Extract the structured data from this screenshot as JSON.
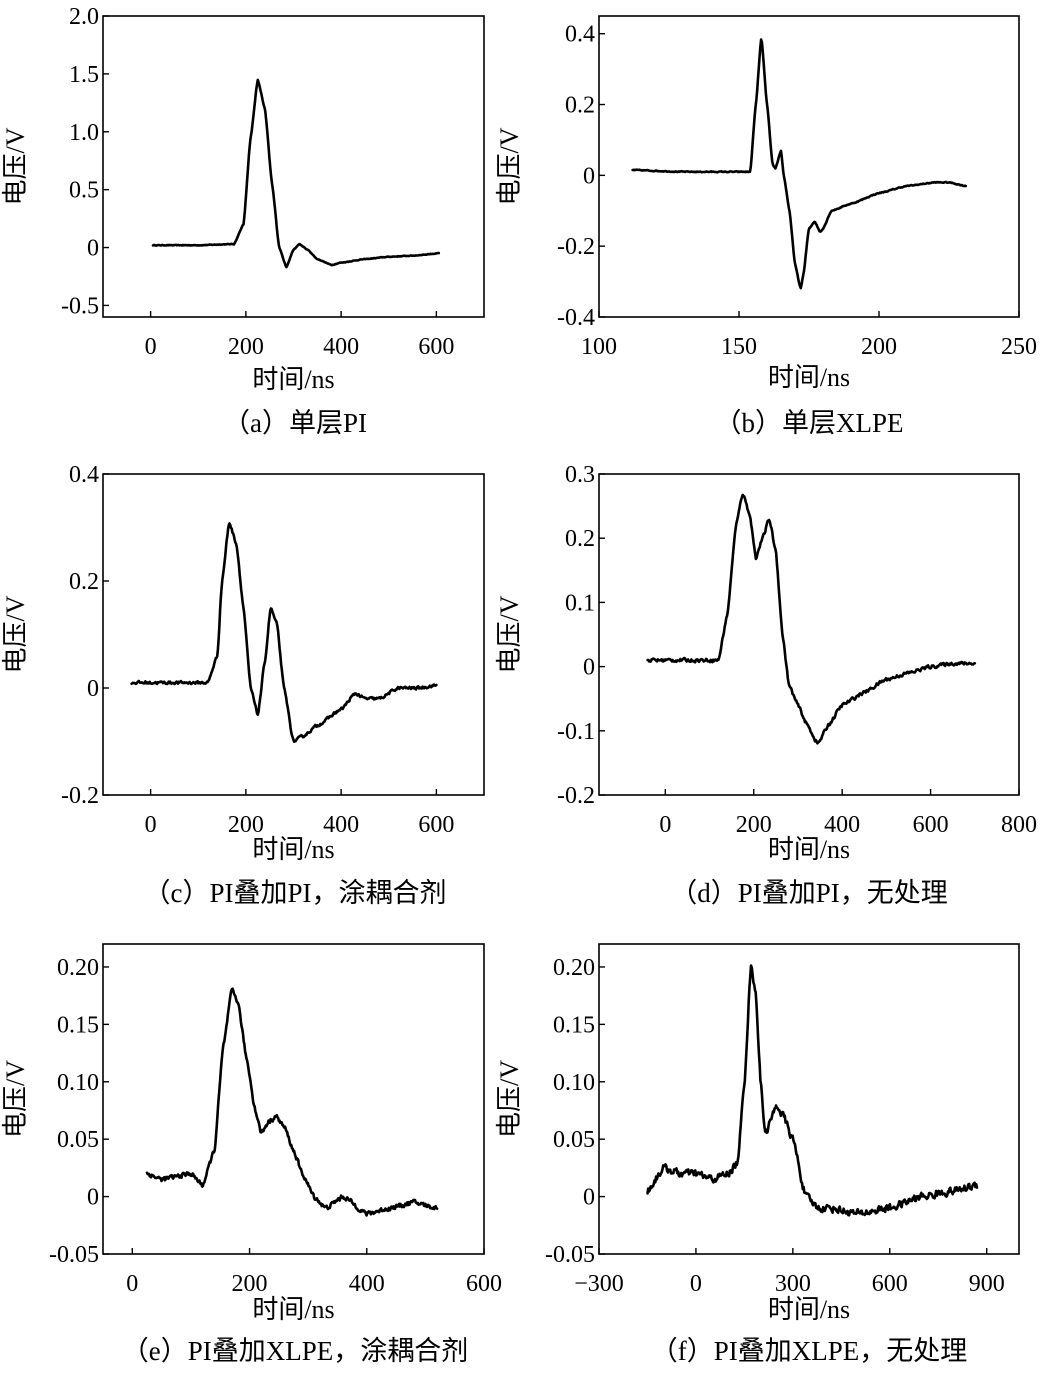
{
  "chart_data": [
    {
      "type": "line",
      "caption": "（a）单层PI",
      "xlabel": "时间/ns",
      "ylabel": "电压/V",
      "xlim": [
        -100,
        700
      ],
      "ylim": [
        -0.6,
        2.0
      ],
      "xticks": [
        0,
        200,
        400,
        600
      ],
      "xtick_labels": [
        "0",
        "200",
        "400",
        "600"
      ],
      "yticks": [
        -0.5,
        0,
        0.5,
        1.0,
        1.5,
        2.0
      ],
      "ytick_labels": [
        "-0.5",
        "0",
        "0.5",
        "1.0",
        "1.5",
        "2.0"
      ],
      "noise": 0.004,
      "series": [
        {
          "x": [
            5,
            100,
            175,
            195,
            210,
            225,
            240,
            255,
            270,
            285,
            300,
            312,
            330,
            350,
            380,
            400,
            450,
            500,
            550,
            605
          ],
          "y": [
            0.02,
            0.02,
            0.03,
            0.2,
            0.95,
            1.45,
            1.2,
            0.55,
            0.0,
            -0.17,
            -0.02,
            0.03,
            -0.02,
            -0.1,
            -0.15,
            -0.13,
            -0.1,
            -0.08,
            -0.07,
            -0.05
          ]
        }
      ]
    },
    {
      "type": "line",
      "caption": "（b）单层XLPE",
      "xlabel": "时间/ns",
      "ylabel": "电压/V",
      "xlim": [
        100,
        250
      ],
      "ylim": [
        -0.4,
        0.45
      ],
      "xticks": [
        100,
        150,
        200,
        250
      ],
      "xtick_labels": [
        "100",
        "150",
        "200",
        "250"
      ],
      "yticks": [
        -0.4,
        -0.2,
        0,
        0.2,
        0.4
      ],
      "ytick_labels": [
        "-0.4",
        "-0.2",
        "0",
        "0.2",
        "0.4"
      ],
      "noise": 0.002,
      "series": [
        {
          "x": [
            112,
            130,
            154,
            156,
            158,
            160,
            162,
            163,
            165,
            166,
            168,
            170,
            172,
            173,
            175,
            177,
            179,
            180,
            183,
            190,
            200,
            210,
            220,
            225,
            231
          ],
          "y": [
            0.015,
            0.01,
            0.01,
            0.2,
            0.39,
            0.2,
            0.03,
            0.02,
            0.07,
            0.0,
            -0.1,
            -0.25,
            -0.32,
            -0.28,
            -0.15,
            -0.13,
            -0.16,
            -0.15,
            -0.1,
            -0.08,
            -0.05,
            -0.03,
            -0.02,
            -0.02,
            -0.03
          ]
        }
      ]
    },
    {
      "type": "line",
      "caption": "（c）PI叠加PI，涂耦合剂",
      "xlabel": "时间/ns",
      "ylabel": "电压/V",
      "xlim": [
        -100,
        700
      ],
      "ylim": [
        -0.2,
        0.4
      ],
      "xticks": [
        0,
        200,
        400,
        600
      ],
      "xtick_labels": [
        "0",
        "200",
        "400",
        "600"
      ],
      "yticks": [
        -0.2,
        0,
        0.2,
        0.4
      ],
      "ytick_labels": [
        "-0.2",
        "0",
        "0.2",
        "0.4"
      ],
      "noise": 0.004,
      "series": [
        {
          "x": [
            -40,
            50,
            120,
            140,
            150,
            165,
            180,
            195,
            210,
            225,
            240,
            252,
            265,
            280,
            300,
            320,
            350,
            400,
            430,
            450,
            480,
            520,
            560,
            600
          ],
          "y": [
            0.01,
            0.01,
            0.01,
            0.06,
            0.2,
            0.31,
            0.27,
            0.15,
            0.0,
            -0.05,
            0.05,
            0.15,
            0.12,
            0.0,
            -0.1,
            -0.09,
            -0.07,
            -0.04,
            -0.01,
            -0.02,
            -0.02,
            0.0,
            0.0,
            0.005
          ]
        }
      ]
    },
    {
      "type": "line",
      "caption": "（d）PI叠加PI，无处理",
      "xlabel": "时间/ns",
      "ylabel": "电压/V",
      "xlim": [
        -150,
        800
      ],
      "ylim": [
        -0.2,
        0.3
      ],
      "xticks": [
        0,
        200,
        400,
        600,
        800
      ],
      "xtick_labels": [
        "0",
        "200",
        "400",
        "600",
        "800"
      ],
      "yticks": [
        -0.2,
        -0.1,
        0,
        0.1,
        0.2,
        0.3
      ],
      "ytick_labels": [
        "-0.2",
        "-0.1",
        "0",
        "0.1",
        "0.2",
        "0.3"
      ],
      "noise": 0.004,
      "series": [
        {
          "x": [
            -40,
            50,
            120,
            140,
            160,
            175,
            190,
            205,
            220,
            235,
            250,
            265,
            280,
            300,
            320,
            345,
            370,
            400,
            450,
            500,
            550,
            600,
            650,
            700
          ],
          "y": [
            0.01,
            0.01,
            0.01,
            0.08,
            0.22,
            0.27,
            0.24,
            0.17,
            0.2,
            0.23,
            0.18,
            0.05,
            -0.03,
            -0.06,
            -0.09,
            -0.12,
            -0.09,
            -0.06,
            -0.04,
            -0.02,
            -0.01,
            0.0,
            0.005,
            0.005
          ]
        }
      ]
    },
    {
      "type": "line",
      "caption": "（e）PI叠加XLPE，涂耦合剂",
      "xlabel": "时间/ns",
      "ylabel": "电压/V",
      "xlim": [
        -50,
        600
      ],
      "ylim": [
        -0.05,
        0.22
      ],
      "xticks": [
        0,
        200,
        400,
        600
      ],
      "xtick_labels": [
        "0",
        "200",
        "400",
        "600"
      ],
      "yticks": [
        -0.05,
        0,
        0.05,
        0.1,
        0.15,
        0.2
      ],
      "ytick_labels": [
        "-0.05",
        "0",
        "0.05",
        "0.10",
        "0.15",
        "0.20"
      ],
      "noise": 0.003,
      "series": [
        {
          "x": [
            25,
            50,
            100,
            120,
            140,
            155,
            170,
            180,
            195,
            210,
            220,
            232,
            245,
            260,
            275,
            290,
            310,
            330,
            360,
            400,
            440,
            480,
            520
          ],
          "y": [
            0.02,
            0.015,
            0.02,
            0.01,
            0.04,
            0.13,
            0.18,
            0.17,
            0.12,
            0.075,
            0.055,
            0.065,
            0.07,
            0.06,
            0.04,
            0.02,
            0.0,
            -0.01,
            0.0,
            -0.015,
            -0.01,
            -0.005,
            -0.01
          ]
        }
      ]
    },
    {
      "type": "line",
      "caption": "（f）PI叠加XLPE，无处理",
      "xlabel": "时间/ns",
      "ylabel": "电压/V",
      "xlim": [
        -300,
        1000
      ],
      "ylim": [
        -0.05,
        0.22
      ],
      "xticks": [
        -300,
        0,
        300,
        600,
        900
      ],
      "xtick_labels": [
        "−300",
        "0",
        "300",
        "600",
        "900"
      ],
      "yticks": [
        -0.05,
        0,
        0.05,
        0.1,
        0.15,
        0.2
      ],
      "ytick_labels": [
        "-0.05",
        "0",
        "0.05",
        "0.10",
        "0.15",
        "0.20"
      ],
      "noise": 0.005,
      "series": [
        {
          "x": [
            -150,
            -100,
            -50,
            0,
            50,
            100,
            130,
            150,
            170,
            185,
            200,
            215,
            230,
            250,
            270,
            300,
            340,
            380,
            420,
            500,
            600,
            700,
            800,
            870
          ],
          "y": [
            0.005,
            0.025,
            0.02,
            0.02,
            0.015,
            0.02,
            0.03,
            0.1,
            0.2,
            0.18,
            0.1,
            0.055,
            0.065,
            0.08,
            0.07,
            0.05,
            0.0,
            -0.01,
            -0.01,
            -0.015,
            -0.01,
            0.0,
            0.005,
            0.01
          ]
        }
      ]
    }
  ]
}
